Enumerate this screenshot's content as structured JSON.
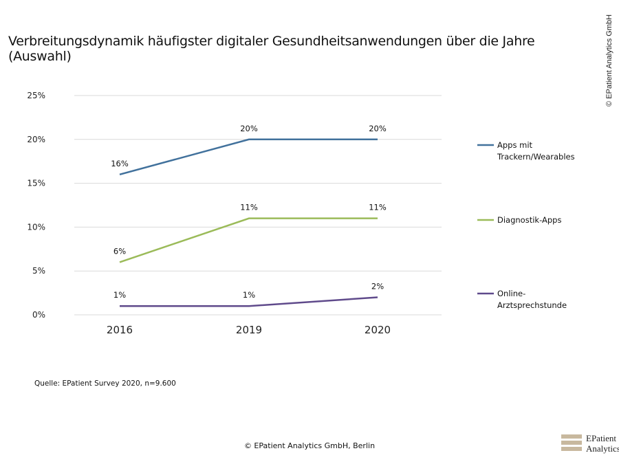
{
  "header": {
    "title": "Verbreitungsdynamik häufigster digitaler Gesundheitsanwendungen über die Jahre (Auswahl)",
    "copyright_vertical": "© EPatient Analytics GmbH"
  },
  "footer": {
    "source": "Quelle: EPatient Survey 2020, n=9.600",
    "copyright": "© EPatient Analytics GmbH, Berlin",
    "logo_text": "EPatient Analytics"
  },
  "chart_data": {
    "type": "line",
    "categories": [
      "2016",
      "2019",
      "2020"
    ],
    "ylim": [
      0,
      25
    ],
    "yticks": [
      "0%",
      "5%",
      "10%",
      "15%",
      "20%",
      "25%"
    ],
    "grid": true,
    "legend_placement": "right",
    "series": [
      {
        "name": "Apps mit Trackern/Wearables",
        "values": [
          16,
          20,
          20
        ],
        "labels": [
          "16%",
          "20%",
          "20%"
        ],
        "color": "#41719c"
      },
      {
        "name": "Diagnostik-Apps",
        "values": [
          6,
          11,
          11
        ],
        "labels": [
          "6%",
          "11%",
          "11%"
        ],
        "color": "#9bbb59"
      },
      {
        "name": "Online-Arztsprechstunde",
        "values": [
          1,
          1,
          2
        ],
        "labels": [
          "1%",
          "1%",
          "2%"
        ],
        "color": "#5f4a8b"
      }
    ]
  }
}
